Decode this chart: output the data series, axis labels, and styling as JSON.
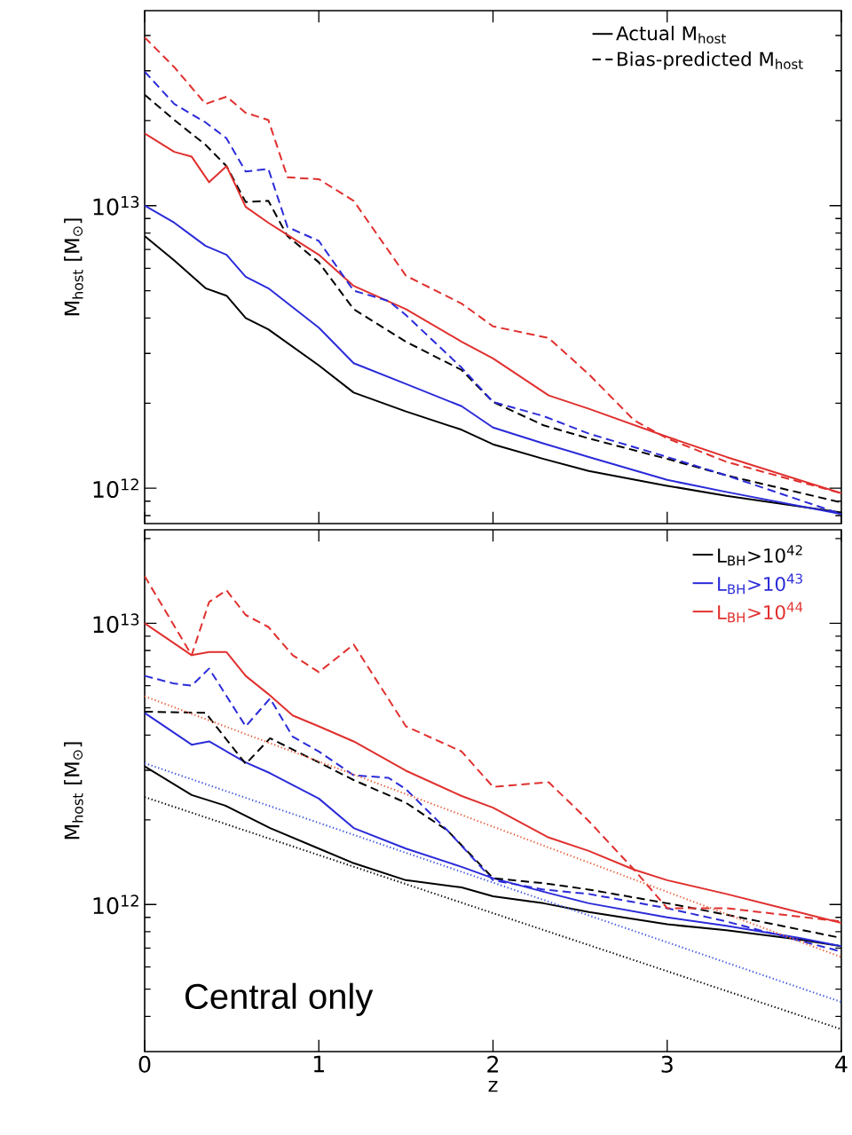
{
  "chart_data": [
    {
      "type": "line",
      "log": "y",
      "xlim": [
        0,
        4
      ],
      "xticks": [
        0,
        1,
        2,
        3,
        4
      ],
      "ylim": [
        750000000000.0,
        49000000000000.0
      ],
      "yticks": [
        {
          "value": 1000000000000.0,
          "label": "10$^{12}$"
        },
        {
          "value": 10000000000000.0,
          "label": "10$^{13}$"
        },
        {
          "value": 800000000000.0,
          "label": null
        },
        {
          "value": 900000000000.0,
          "label": null
        },
        {
          "value": 2000000000000.0,
          "label": null
        },
        {
          "value": 3000000000000.0,
          "label": null
        },
        {
          "value": 4000000000000.0,
          "label": null
        },
        {
          "value": 5000000000000.0,
          "label": null
        },
        {
          "value": 6000000000000.0,
          "label": null
        },
        {
          "value": 7000000000000.0,
          "label": null
        },
        {
          "value": 8000000000000.0,
          "label": null
        },
        {
          "value": 9000000000000.0,
          "label": null
        },
        {
          "value": 20000000000000.0,
          "label": null
        },
        {
          "value": 30000000000000.0,
          "label": null
        },
        {
          "value": 40000000000000.0,
          "label": null
        }
      ],
      "tick_labels": "y",
      "ylabel": "M$_{host}$ [M$_{⊙}$]",
      "legend": "top right",
      "series": [
        {
          "name": "Actual M$_{host}$",
          "color": "#000000",
          "line_style": "solid",
          "x": [
            0,
            0.17,
            0.35,
            0.47,
            0.58,
            0.71,
            1.0,
            1.2,
            1.5,
            1.82,
            2.0,
            2.29,
            2.55,
            3.0,
            3.34,
            4.0
          ],
          "values": [
            7800000000000.0,
            6400000000000.0,
            5100000000000.0,
            4800000000000.0,
            4000000000000.0,
            3650000000000.0,
            2720000000000.0,
            2180000000000.0,
            1870000000000.0,
            1610000000000.0,
            1430000000000.0,
            1270000000000.0,
            1150000000000.0,
            1020000000000.0,
            940000000000.0,
            820000000000.0
          ]
        },
        {
          "name": "Bias-predicted M$_{host}$",
          "color": "#000000",
          "line_style": "dashed",
          "x": [
            0,
            0.17,
            0.35,
            0.47,
            0.58,
            0.71,
            0.82,
            1.0,
            1.2,
            1.5,
            1.82,
            2.0,
            2.29,
            2.55,
            3.0,
            3.34,
            4.0
          ],
          "values": [
            24700000000000.0,
            20100000000000.0,
            16400000000000.0,
            13800000000000.0,
            10300000000000.0,
            10400000000000.0,
            7800000000000.0,
            6300000000000.0,
            4300000000000.0,
            3300000000000.0,
            2620000000000.0,
            2020000000000.0,
            1670000000000.0,
            1500000000000.0,
            1270000000000.0,
            1110000000000.0,
            890000000000.0
          ]
        },
        {
          "color": "#2b2bd9",
          "line_style": "solid",
          "x": [
            0,
            0.17,
            0.35,
            0.47,
            0.58,
            0.71,
            1.0,
            1.2,
            1.5,
            1.82,
            2.0,
            2.29,
            2.55,
            3.0,
            3.34,
            4.0
          ],
          "values": [
            10000000000000.0,
            8700000000000.0,
            7200000000000.0,
            6700000000000.0,
            5600000000000.0,
            5100000000000.0,
            3700000000000.0,
            2770000000000.0,
            2340000000000.0,
            1950000000000.0,
            1640000000000.0,
            1440000000000.0,
            1290000000000.0,
            1070000000000.0,
            970000000000.0,
            810000000000.0
          ]
        },
        {
          "color": "#e0302e",
          "line_style": "solid",
          "x": [
            0,
            0.17,
            0.27,
            0.37,
            0.47,
            0.58,
            0.71,
            1.0,
            1.2,
            1.5,
            1.82,
            2.0,
            2.32,
            2.55,
            3.0,
            3.34,
            4.0
          ],
          "values": [
            18000000000000.0,
            15500000000000.0,
            14900000000000.0,
            12100000000000.0,
            13800000000000.0,
            9900000000000.0,
            8700000000000.0,
            6700000000000.0,
            5200000000000.0,
            4300000000000.0,
            3300000000000.0,
            2880000000000.0,
            2130000000000.0,
            1910000000000.0,
            1520000000000.0,
            1290000000000.0,
            960000000000.0
          ]
        },
        {
          "color": "#2b2bd9",
          "line_style": "dashed",
          "x": [
            0,
            0.17,
            0.35,
            0.47,
            0.58,
            0.71,
            0.82,
            1.0,
            1.2,
            1.4,
            1.5,
            1.82,
            2.0,
            2.29,
            2.55,
            3.0,
            3.34,
            4.0
          ],
          "values": [
            29800000000000.0,
            22900000000000.0,
            19700000000000.0,
            17300000000000.0,
            13200000000000.0,
            13500000000000.0,
            8400000000000.0,
            7500000000000.0,
            5000000000000.0,
            4600000000000.0,
            4100000000000.0,
            2670000000000.0,
            2020000000000.0,
            1800000000000.0,
            1560000000000.0,
            1290000000000.0,
            1110000000000.0,
            810000000000.0
          ]
        },
        {
          "color": "#e0302e",
          "line_style": "dashed",
          "x": [
            0,
            0.17,
            0.35,
            0.47,
            0.58,
            0.71,
            0.82,
            1.0,
            1.2,
            1.5,
            1.82,
            2.0,
            2.32,
            2.55,
            2.81,
            3.0,
            3.34,
            4.0
          ],
          "values": [
            39400000000000.0,
            30900000000000.0,
            22900000000000.0,
            24300000000000.0,
            21300000000000.0,
            20100000000000.0,
            12600000000000.0,
            12400000000000.0,
            10400000000000.0,
            5650000000000.0,
            4500000000000.0,
            3740000000000.0,
            3400000000000.0,
            2530000000000.0,
            1740000000000.0,
            1500000000000.0,
            1240000000000.0,
            960000000000.0
          ]
        }
      ]
    },
    {
      "type": "line",
      "log": "y",
      "xlim": [
        0,
        4
      ],
      "xticks": [
        0,
        1,
        2,
        3,
        4
      ],
      "ylim": [
        300000000000.0,
        21500000000000.0
      ],
      "yticks": [
        {
          "value": 1000000000000.0,
          "label": "10$^{12}$"
        },
        {
          "value": 10000000000000.0,
          "label": "10$^{13}$"
        },
        {
          "value": 400000000000.0,
          "label": null
        },
        {
          "value": 500000000000.0,
          "label": null
        },
        {
          "value": 600000000000.0,
          "label": null
        },
        {
          "value": 700000000000.0,
          "label": null
        },
        {
          "value": 800000000000.0,
          "label": null
        },
        {
          "value": 900000000000.0,
          "label": null
        },
        {
          "value": 2000000000000.0,
          "label": null
        },
        {
          "value": 3000000000000.0,
          "label": null
        },
        {
          "value": 4000000000000.0,
          "label": null
        },
        {
          "value": 5000000000000.0,
          "label": null
        },
        {
          "value": 6000000000000.0,
          "label": null
        },
        {
          "value": 7000000000000.0,
          "label": null
        },
        {
          "value": 8000000000000.0,
          "label": null
        },
        {
          "value": 9000000000000.0,
          "label": null
        },
        {
          "value": 20000000000000.0,
          "label": null
        }
      ],
      "xlabel": "z",
      "ylabel": "M$_{host}$ [M$_{⊙}$]",
      "legend": "top right",
      "annotations": [
        "Central only"
      ],
      "series": [
        {
          "name": "L$_{BH}$>10$^{42}$",
          "color": "#000000",
          "line_style": "solid",
          "x": [
            0,
            0.27,
            0.46,
            0.72,
            1.0,
            1.19,
            1.5,
            1.82,
            2.0,
            2.29,
            2.55,
            3.0,
            3.34,
            3.76,
            4.0
          ],
          "values": [
            3100000000000.0,
            2450000000000.0,
            2250000000000.0,
            1870000000000.0,
            1580000000000.0,
            1410000000000.0,
            1220000000000.0,
            1150000000000.0,
            1070000000000.0,
            1010000000000.0,
            940000000000.0,
            850000000000.0,
            810000000000.0,
            750000000000.0,
            710000000000.0
          ]
        },
        {
          "name": "L$_{BH}$>10$^{43}$",
          "color": "#2b2bd9",
          "line_style": "solid",
          "x": [
            0,
            0.27,
            0.37,
            0.58,
            0.72,
            1.0,
            1.2,
            1.5,
            1.82,
            2.0,
            2.29,
            2.55,
            3.0,
            3.34,
            3.76,
            4.0
          ],
          "values": [
            4800000000000.0,
            3700000000000.0,
            3800000000000.0,
            3200000000000.0,
            2930000000000.0,
            2380000000000.0,
            1870000000000.0,
            1580000000000.0,
            1360000000000.0,
            1240000000000.0,
            1110000000000.0,
            1010000000000.0,
            900000000000.0,
            840000000000.0,
            760000000000.0,
            710000000000.0
          ]
        },
        {
          "name": "L$_{BH}$>10$^{44}$",
          "color": "#e0302e",
          "line_style": "solid",
          "x": [
            0,
            0.27,
            0.37,
            0.47,
            0.58,
            0.71,
            0.85,
            1.0,
            1.2,
            1.5,
            1.82,
            2.0,
            2.32,
            2.55,
            2.81,
            3.0,
            3.34,
            4.0
          ],
          "values": [
            10000000000000.0,
            7700000000000.0,
            7900000000000.0,
            7900000000000.0,
            6500000000000.0,
            5600000000000.0,
            4700000000000.0,
            4300000000000.0,
            3800000000000.0,
            2990000000000.0,
            2430000000000.0,
            2210000000000.0,
            1730000000000.0,
            1550000000000.0,
            1330000000000.0,
            1220000000000.0,
            1090000000000.0,
            860000000000.0
          ]
        },
        {
          "color": "#000000",
          "line_style": "dashed",
          "x": [
            0,
            0.35,
            0.58,
            0.72,
            1.0,
            1.2,
            1.5,
            1.74,
            2.0,
            2.29,
            2.55,
            3.0,
            3.34,
            4.0
          ],
          "values": [
            4850000000000.0,
            4800000000000.0,
            3160000000000.0,
            3900000000000.0,
            3200000000000.0,
            2770000000000.0,
            2300000000000.0,
            1830000000000.0,
            1240000000000.0,
            1190000000000.0,
            1130000000000.0,
            1010000000000.0,
            920000000000.0,
            760000000000.0
          ]
        },
        {
          "color": "#2b2bd9",
          "line_style": "dashed",
          "x": [
            0,
            0.17,
            0.27,
            0.37,
            0.58,
            0.72,
            0.85,
            1.0,
            1.2,
            1.4,
            1.5,
            1.74,
            2.0,
            2.29,
            2.55,
            3.0,
            3.34,
            4.0
          ],
          "values": [
            6500000000000.0,
            6100000000000.0,
            6000000000000.0,
            6900000000000.0,
            4300000000000.0,
            5400000000000.0,
            3950000000000.0,
            3500000000000.0,
            2880000000000.0,
            2820000000000.0,
            2570000000000.0,
            1830000000000.0,
            1220000000000.0,
            1130000000000.0,
            1090000000000.0,
            970000000000.0,
            870000000000.0,
            680000000000.0
          ]
        },
        {
          "color": "#e0302e",
          "line_style": "dashed",
          "x": [
            0,
            0.27,
            0.37,
            0.47,
            0.58,
            0.71,
            0.85,
            1.0,
            1.2,
            1.5,
            1.82,
            2.0,
            2.32,
            2.55,
            2.81,
            3.0,
            3.34,
            4.0
          ],
          "values": [
            14700000000000.0,
            7700000000000.0,
            11900000000000.0,
            13100000000000.0,
            10700000000000.0,
            9700000000000.0,
            7700000000000.0,
            6700000000000.0,
            8400000000000.0,
            4300000000000.0,
            3500000000000.0,
            2620000000000.0,
            2720000000000.0,
            1980000000000.0,
            1330000000000.0,
            970000000000.0,
            970000000000.0,
            870000000000.0
          ]
        },
        {
          "color": "#000000",
          "line_style": "dotted",
          "x": [
            0,
            4
          ],
          "values": [
            2410000000000.0,
            360000000000.0
          ]
        },
        {
          "color": "#3f55e0",
          "line_style": "dotted",
          "x": [
            0,
            4
          ],
          "values": [
            3180000000000.0,
            450000000000.0
          ]
        },
        {
          "color": "#e8603a",
          "line_style": "dotted",
          "x": [
            0,
            4
          ],
          "values": [
            5500000000000.0,
            650000000000.0
          ]
        }
      ]
    }
  ]
}
